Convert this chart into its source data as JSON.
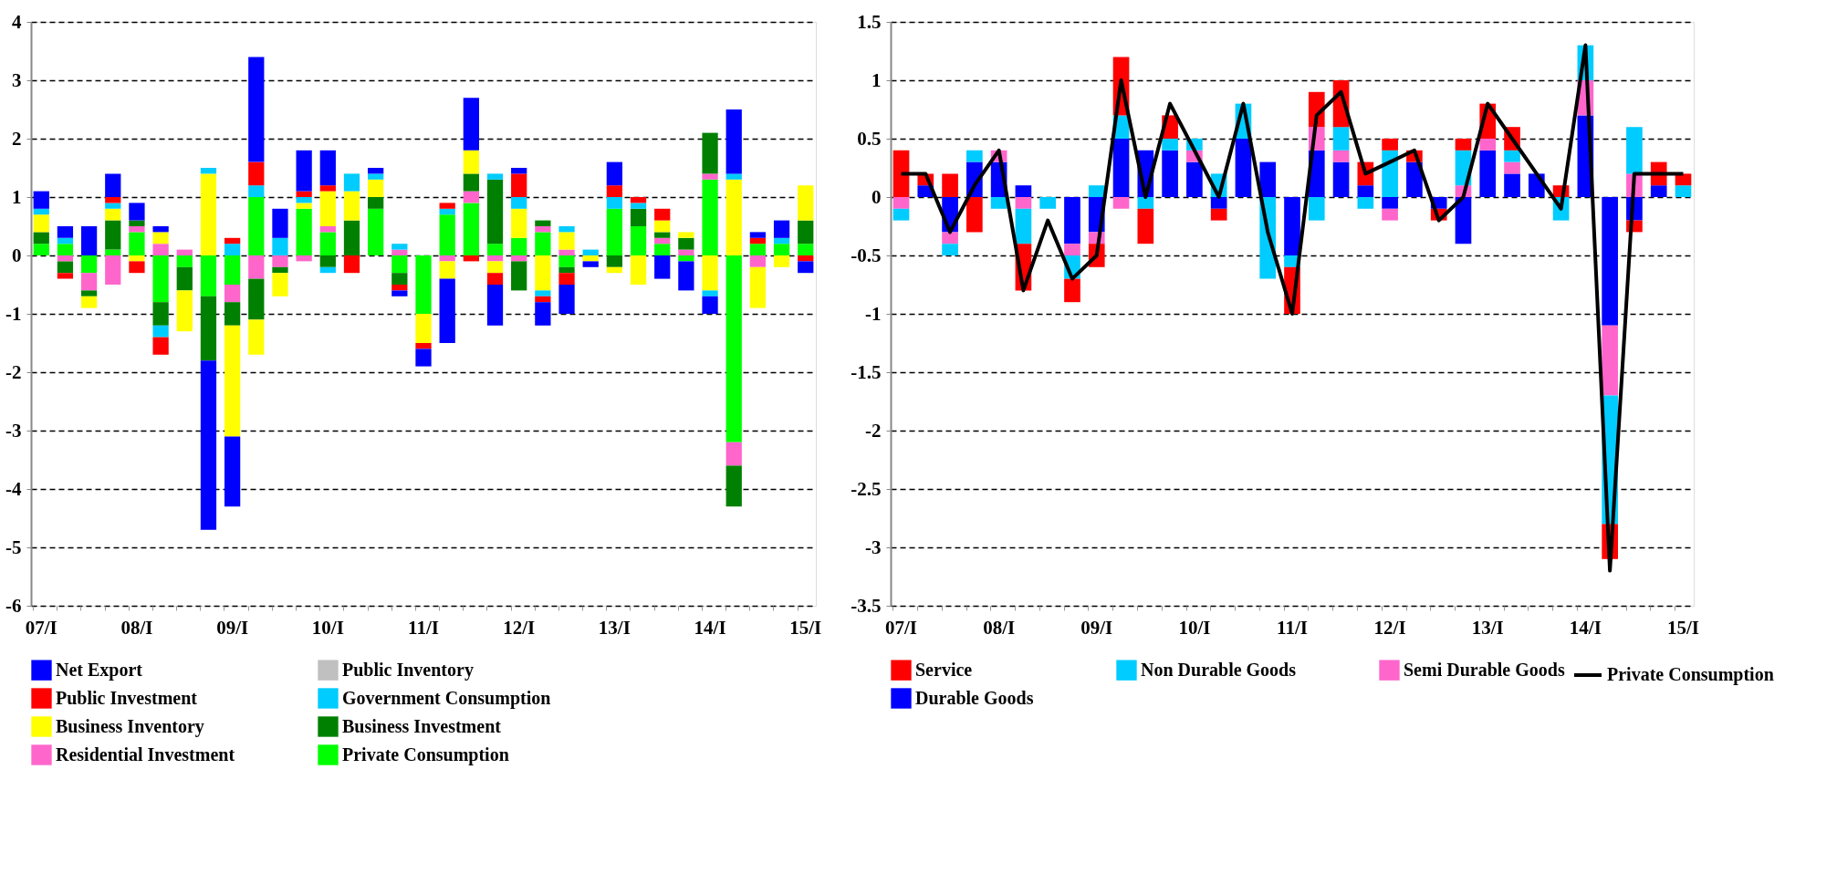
{
  "chart_data": [
    {
      "type": "bar",
      "stacked": true,
      "legend": "bottom",
      "grid": "y",
      "categories": [
        "07/I",
        null,
        null,
        null,
        "08/I",
        null,
        null,
        null,
        "09/I",
        null,
        null,
        null,
        "10/I",
        null,
        null,
        null,
        "11/I",
        null,
        null,
        null,
        "12/I",
        null,
        null,
        null,
        "13/I",
        null,
        null,
        null,
        "14/I",
        null,
        null,
        null,
        "15/I"
      ],
      "ylim": [
        -6,
        4
      ],
      "yticks": [
        -6,
        -5,
        -4,
        -3,
        -2,
        -1,
        0,
        1,
        2,
        3,
        4
      ],
      "series": [
        {
          "name": "Private Consumption",
          "color": "#00ff00",
          "values": [
            0.2,
            0.2,
            -0.3,
            0.1,
            0.4,
            -0.8,
            -0.2,
            -0.7,
            -0.5,
            1.0,
            null,
            0.8,
            0.4,
            null,
            0.8,
            -0.3,
            -1.0,
            0.7,
            0.9,
            0.2,
            0.3,
            0.4,
            -0.2,
            null,
            0.8,
            0.5,
            0.2,
            -0.1,
            1.3,
            -3.2,
            0.2,
            0.2,
            0.2
          ]
        },
        {
          "name": "Residential Investment",
          "color": "#ff66cc",
          "values": [
            null,
            -0.1,
            -0.3,
            -0.5,
            0.1,
            0.2,
            0.1,
            null,
            -0.3,
            -0.4,
            -0.2,
            -0.1,
            0.1,
            null,
            null,
            0.1,
            null,
            -0.1,
            0.2,
            -0.1,
            -0.1,
            0.1,
            0.1,
            null,
            null,
            null,
            0.1,
            0.1,
            0.1,
            -0.4,
            -0.2,
            null,
            null
          ]
        },
        {
          "name": "Business Investment",
          "color": "#008000",
          "values": [
            0.2,
            -0.2,
            -0.1,
            0.5,
            0.1,
            -0.4,
            -0.4,
            -1.1,
            -0.4,
            -0.7,
            -0.1,
            null,
            -0.2,
            0.6,
            0.2,
            -0.2,
            null,
            null,
            0.3,
            1.1,
            -0.5,
            0.1,
            -0.1,
            null,
            -0.2,
            0.3,
            0.1,
            0.2,
            0.7,
            -0.7,
            null,
            null,
            0.4
          ]
        },
        {
          "name": "Business Inventory",
          "color": "#ffff00",
          "values": [
            0.3,
            null,
            -0.2,
            0.2,
            -0.1,
            0.2,
            -0.7,
            1.4,
            -1.9,
            -0.6,
            -0.4,
            0.1,
            0.6,
            0.5,
            0.3,
            null,
            -0.5,
            -0.3,
            0.4,
            -0.2,
            0.5,
            -0.6,
            0.3,
            -0.1,
            -0.1,
            -0.5,
            0.2,
            0.1,
            -0.6,
            1.3,
            -0.7,
            -0.2,
            0.6
          ]
        },
        {
          "name": "Government Consumption",
          "color": "#00ccff",
          "values": [
            0.1,
            0.1,
            null,
            0.1,
            null,
            -0.2,
            null,
            0.1,
            0.2,
            0.2,
            0.3,
            0.1,
            -0.1,
            0.3,
            0.1,
            0.1,
            null,
            0.1,
            null,
            0.1,
            0.2,
            -0.1,
            0.1,
            0.1,
            0.2,
            0.1,
            null,
            null,
            -0.1,
            0.1,
            null,
            0.1,
            null
          ]
        },
        {
          "name": "Public Investment",
          "color": "#ff0000",
          "values": [
            null,
            -0.1,
            null,
            0.1,
            -0.2,
            -0.3,
            null,
            null,
            0.1,
            0.4,
            null,
            0.1,
            0.1,
            -0.3,
            null,
            -0.1,
            -0.1,
            0.1,
            -0.1,
            -0.2,
            0.4,
            -0.1,
            -0.2,
            null,
            0.2,
            0.1,
            0.2,
            null,
            null,
            null,
            0.1,
            null,
            -0.1
          ]
        },
        {
          "name": "Public Inventory",
          "color": "#c0c0c0",
          "values": [
            0,
            0,
            0,
            0,
            0,
            0,
            0,
            0,
            0,
            0,
            0,
            0,
            0,
            0,
            0,
            0,
            0,
            0,
            0,
            0,
            0,
            0,
            0,
            0,
            0,
            0,
            0,
            0,
            0,
            0,
            0,
            0,
            0
          ]
        },
        {
          "name": "Net Export",
          "color": "#0000ff",
          "values": [
            0.3,
            0.2,
            0.5,
            0.4,
            0.3,
            0.1,
            null,
            -2.9,
            -1.2,
            1.8,
            0.5,
            0.7,
            0.6,
            null,
            0.1,
            -0.1,
            -0.3,
            -1.1,
            0.9,
            -0.7,
            0.1,
            -0.4,
            -0.5,
            -0.1,
            0.4,
            null,
            -0.4,
            -0.5,
            -0.3,
            1.1,
            0.1,
            0.3,
            -0.2
          ]
        }
      ]
    },
    {
      "type": "bar",
      "stacked": true,
      "legend": "bottom",
      "grid": "y",
      "categories": [
        "07/I",
        null,
        null,
        null,
        "08/I",
        null,
        null,
        null,
        "09/I",
        null,
        null,
        null,
        "10/I",
        null,
        null,
        null,
        "11/I",
        null,
        null,
        null,
        "12/I",
        null,
        null,
        null,
        "13/I",
        null,
        null,
        null,
        "14/I",
        null,
        null,
        null,
        "15/I"
      ],
      "ylim": [
        -3.5,
        1.5
      ],
      "yticks": [
        -3.5,
        -3,
        -2.5,
        -2,
        -1.5,
        -1,
        -0.5,
        0,
        0.5,
        1,
        1.5
      ],
      "series": [
        {
          "name": "Durable Goods",
          "color": "#0000ff",
          "values": [
            null,
            0.1,
            -0.3,
            0.3,
            0.3,
            0.1,
            null,
            -0.4,
            -0.3,
            0.5,
            0.4,
            0.4,
            0.3,
            -0.1,
            0.5,
            0.3,
            -0.5,
            0.4,
            0.3,
            0.1,
            -0.1,
            0.3,
            -0.1,
            -0.4,
            0.4,
            0.2,
            0.2,
            null,
            0.7,
            -1.1,
            -0.2,
            0.1,
            null
          ]
        },
        {
          "name": "Semi Durable Goods",
          "color": "#ff66cc",
          "values": [
            -0.1,
            null,
            -0.1,
            null,
            0.1,
            -0.1,
            null,
            -0.1,
            -0.1,
            -0.1,
            null,
            null,
            0.1,
            null,
            null,
            null,
            null,
            0.2,
            0.1,
            null,
            -0.1,
            null,
            null,
            0.1,
            0.1,
            0.1,
            null,
            null,
            0.3,
            -0.6,
            0.2,
            null,
            null
          ]
        },
        {
          "name": "Non Durable Goods",
          "color": "#00ccff",
          "values": [
            -0.1,
            null,
            -0.1,
            0.1,
            -0.1,
            -0.3,
            -0.1,
            -0.2,
            0.1,
            0.2,
            -0.1,
            0.1,
            0.1,
            0.2,
            0.3,
            -0.7,
            -0.1,
            -0.2,
            0.2,
            -0.1,
            0.4,
            null,
            null,
            0.3,
            null,
            0.1,
            null,
            -0.2,
            0.3,
            -1.1,
            0.4,
            null,
            0.1
          ]
        },
        {
          "name": "Service",
          "color": "#ff0000",
          "values": [
            0.4,
            0.1,
            0.2,
            -0.3,
            null,
            -0.4,
            null,
            -0.2,
            -0.2,
            0.5,
            -0.3,
            0.2,
            null,
            -0.1,
            null,
            null,
            -0.4,
            0.3,
            0.4,
            0.2,
            0.1,
            0.1,
            -0.1,
            0.1,
            0.3,
            0.2,
            null,
            0.1,
            null,
            -0.3,
            -0.1,
            0.2,
            0.1
          ]
        },
        {
          "name": "Private Consumption",
          "type": "line",
          "color": "#000000",
          "values": [
            0.2,
            0.2,
            -0.3,
            0.1,
            0.4,
            -0.8,
            -0.2,
            -0.7,
            -0.5,
            1.0,
            0.0,
            0.8,
            0.4,
            0.0,
            0.8,
            -0.3,
            -1.0,
            0.7,
            0.9,
            0.2,
            0.3,
            0.4,
            -0.2,
            0.0,
            0.8,
            0.5,
            0.2,
            -0.1,
            1.3,
            -3.2,
            0.2,
            0.2,
            0.2
          ]
        }
      ]
    }
  ]
}
